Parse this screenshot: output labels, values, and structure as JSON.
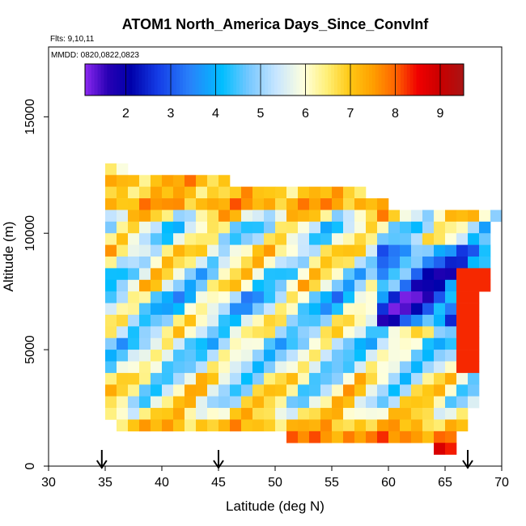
{
  "chart_data": {
    "type": "heatmap",
    "title": "ATOM1 North_America Days_Since_ConvInf",
    "flights_label": "Flts: 9,10,11",
    "dates_label": "MMDD: 0820,0822,0823",
    "xlabel": "Latitude (deg N)",
    "ylabel": "Altitude (m)",
    "xlim": [
      30,
      70
    ],
    "ylim": [
      0,
      18000
    ],
    "x_ticks": [
      30,
      35,
      40,
      45,
      50,
      55,
      60,
      65,
      70
    ],
    "y_ticks": [
      0,
      5000,
      10000,
      15000
    ],
    "colorbar": {
      "range": [
        1.2,
        9.5
      ],
      "tick_values": [
        2,
        3,
        4,
        5,
        6,
        7,
        8,
        9
      ],
      "tick_labels": [
        "2",
        "3",
        "4",
        "5",
        "6",
        "7",
        "8",
        "9"
      ]
    },
    "arrow_latitudes": [
      34.7,
      45.0,
      67.0
    ],
    "cell_width_deg": 1,
    "cell_height_m": 500,
    "note": "grid rows: bottom altitude of each 500 m layer; values = days since convective influence",
    "grid_rows": [
      {
        "alt": 12500,
        "x0": 35,
        "x1": 37,
        "base": 6.0,
        "amp": 0.3,
        "phase": 1
      },
      {
        "alt": 12000,
        "x0": 35,
        "x1": 46,
        "base": 7.2,
        "amp": 0.5,
        "phase": 2
      },
      {
        "alt": 11500,
        "x0": 35,
        "x1": 58,
        "base": 7.0,
        "amp": 0.4,
        "phase": 3
      },
      {
        "alt": 11000,
        "x0": 35,
        "x1": 60,
        "base": 7.4,
        "amp": 0.4,
        "phase": 4
      },
      {
        "alt": 10500,
        "x0": 35,
        "x1": 70,
        "base": 6.3,
        "amp": 1.2,
        "phase": 5
      },
      {
        "alt": 10000,
        "x0": 35,
        "x1": 69,
        "base": 5.4,
        "amp": 1.3,
        "phase": 6
      },
      {
        "alt": 9500,
        "x0": 35,
        "x1": 69,
        "base": 5.6,
        "amp": 1.2,
        "phase": 7
      },
      {
        "alt": 9000,
        "x0": 35,
        "x1": 69,
        "base": 6.3,
        "amp": 1.0,
        "phase": 8
      },
      {
        "alt": 8500,
        "x0": 35,
        "x1": 69,
        "base": 6.0,
        "amp": 1.1,
        "phase": 9
      },
      {
        "alt": 8000,
        "x0": 35,
        "x1": 69,
        "base": 5.6,
        "amp": 1.6,
        "phase": 10
      },
      {
        "alt": 7500,
        "x0": 35,
        "x1": 69,
        "base": 5.7,
        "amp": 1.6,
        "phase": 11
      },
      {
        "alt": 7000,
        "x0": 35,
        "x1": 68,
        "base": 4.9,
        "amp": 1.5,
        "phase": 12
      },
      {
        "alt": 6500,
        "x0": 35,
        "x1": 68,
        "base": 5.0,
        "amp": 1.4,
        "phase": 13
      },
      {
        "alt": 6000,
        "x0": 35,
        "x1": 68,
        "base": 5.6,
        "amp": 1.3,
        "phase": 14
      },
      {
        "alt": 5500,
        "x0": 35,
        "x1": 68,
        "base": 5.7,
        "amp": 1.2,
        "phase": 15
      },
      {
        "alt": 5000,
        "x0": 35,
        "x1": 68,
        "base": 5.1,
        "amp": 1.2,
        "phase": 16
      },
      {
        "alt": 4500,
        "x0": 35,
        "x1": 68,
        "base": 5.3,
        "amp": 1.0,
        "phase": 17
      },
      {
        "alt": 4000,
        "x0": 35,
        "x1": 68,
        "base": 5.4,
        "amp": 1.0,
        "phase": 18
      },
      {
        "alt": 3500,
        "x0": 35,
        "x1": 68,
        "base": 5.8,
        "amp": 1.4,
        "phase": 19
      },
      {
        "alt": 3000,
        "x0": 35,
        "x1": 68,
        "base": 5.9,
        "amp": 1.5,
        "phase": 20
      },
      {
        "alt": 2500,
        "x0": 35,
        "x1": 68,
        "base": 6.0,
        "amp": 1.3,
        "phase": 21
      },
      {
        "alt": 2000,
        "x0": 35,
        "x1": 67,
        "base": 6.5,
        "amp": 0.8,
        "phase": 22
      },
      {
        "alt": 1500,
        "x0": 36,
        "x1": 67,
        "base": 7.1,
        "amp": 0.4,
        "phase": 23
      },
      {
        "alt": 1000,
        "x0": 51,
        "x1": 66,
        "base": 7.7,
        "amp": 0.3,
        "phase": 24
      },
      {
        "alt": 500,
        "x0": 64,
        "x1": 66,
        "base": 8.5,
        "amp": 0.2,
        "phase": 25
      }
    ]
  }
}
